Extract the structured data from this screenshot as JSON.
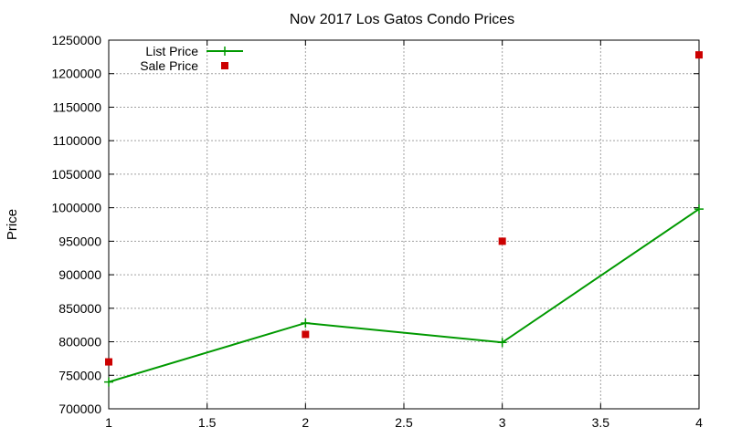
{
  "chart_data": {
    "type": "line",
    "title": "Nov 2017 Los Gatos Condo Prices",
    "xlabel": "",
    "ylabel": "Price",
    "xlim": [
      1,
      4
    ],
    "ylim": [
      700000,
      1250000
    ],
    "x_ticks": [
      "1",
      "1.5",
      "2",
      "2.5",
      "3",
      "3.5",
      "4"
    ],
    "y_ticks": [
      "700000",
      "750000",
      "800000",
      "850000",
      "900000",
      "950000",
      "1000000",
      "1050000",
      "1100000",
      "1150000",
      "1200000",
      "1250000"
    ],
    "grid": true,
    "legend_position": "top-left",
    "series": [
      {
        "name": "List Price",
        "style": "line+cross",
        "color": "#009900",
        "x": [
          1,
          2,
          3,
          4
        ],
        "y": [
          740000,
          828000,
          799000,
          998000
        ]
      },
      {
        "name": "Sale Price",
        "style": "square",
        "color": "#cc0000",
        "x": [
          1,
          2,
          3,
          4
        ],
        "y": [
          770000,
          811000,
          950000,
          1228000
        ]
      }
    ]
  }
}
